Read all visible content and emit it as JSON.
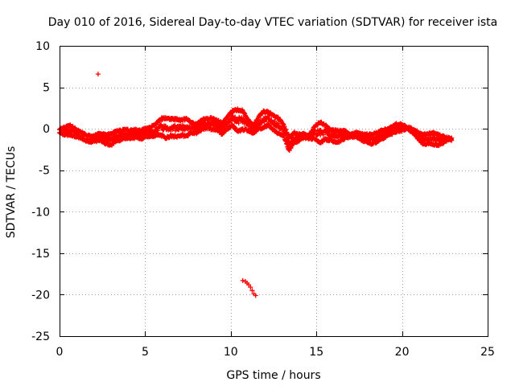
{
  "chart_data": {
    "type": "scatter",
    "title": "Day 010 of 2016, Sidereal Day-to-day VTEC variation (SDTVAR) for receiver ista",
    "xlabel": "GPS time / hours",
    "ylabel": "SDTVAR / TECUs",
    "xlim": [
      0,
      25
    ],
    "ylim": [
      -25,
      10
    ],
    "xticks": [
      0,
      5,
      10,
      15,
      20,
      25
    ],
    "yticks": [
      -25,
      -20,
      -15,
      -10,
      -5,
      0,
      5,
      10
    ],
    "grid": true,
    "marker": "plus",
    "color": "#ff0000",
    "series": [
      {
        "name": "SDTVAR",
        "band": [
          [
            0.0,
            -0.6,
            0.0
          ],
          [
            0.3,
            -0.8,
            0.3
          ],
          [
            0.6,
            -0.9,
            0.5
          ],
          [
            0.9,
            -1.0,
            0.2
          ],
          [
            1.2,
            -1.2,
            -0.3
          ],
          [
            1.5,
            -1.5,
            -0.6
          ],
          [
            1.8,
            -1.7,
            -0.8
          ],
          [
            2.1,
            -1.6,
            -0.6
          ],
          [
            2.4,
            -1.5,
            -0.5
          ],
          [
            2.7,
            -1.9,
            -0.6
          ],
          [
            3.0,
            -2.1,
            -0.5
          ],
          [
            3.3,
            -1.6,
            -0.2
          ],
          [
            3.6,
            -1.4,
            -0.1
          ],
          [
            3.9,
            -1.2,
            0.0
          ],
          [
            4.2,
            -1.3,
            -0.1
          ],
          [
            4.5,
            -1.1,
            0.0
          ],
          [
            4.8,
            -1.3,
            -0.1
          ],
          [
            5.0,
            -1.0,
            0.1
          ],
          [
            5.3,
            -1.1,
            0.3
          ],
          [
            5.6,
            -0.9,
            0.6
          ],
          [
            5.9,
            -0.9,
            1.3
          ],
          [
            6.2,
            -1.2,
            1.4
          ],
          [
            6.5,
            -1.0,
            1.3
          ],
          [
            6.8,
            -1.1,
            1.3
          ],
          [
            7.1,
            -0.9,
            1.2
          ],
          [
            7.4,
            -1.0,
            1.3
          ],
          [
            7.7,
            -0.6,
            0.9
          ],
          [
            8.0,
            -0.6,
            0.6
          ],
          [
            8.3,
            -0.2,
            1.2
          ],
          [
            8.6,
            0.0,
            1.3
          ],
          [
            8.9,
            -0.2,
            1.4
          ],
          [
            9.2,
            -0.2,
            1.1
          ],
          [
            9.5,
            -0.8,
            0.8
          ],
          [
            9.8,
            -0.1,
            1.5
          ],
          [
            10.1,
            0.3,
            2.3
          ],
          [
            10.4,
            -0.4,
            2.4
          ],
          [
            10.7,
            -0.2,
            2.3
          ],
          [
            11.0,
            -0.3,
            1.2
          ],
          [
            11.3,
            -0.6,
            0.5
          ],
          [
            11.6,
            -0.2,
            1.4
          ],
          [
            11.9,
            0.0,
            2.2
          ],
          [
            12.2,
            0.4,
            2.1
          ],
          [
            12.5,
            -0.3,
            1.7
          ],
          [
            12.8,
            -0.7,
            1.4
          ],
          [
            13.1,
            -1.0,
            0.5
          ],
          [
            13.4,
            -2.7,
            -0.9
          ],
          [
            13.7,
            -1.8,
            -0.4
          ],
          [
            14.0,
            -1.5,
            -0.6
          ],
          [
            14.3,
            -1.2,
            -0.5
          ],
          [
            14.6,
            -1.3,
            -0.7
          ],
          [
            14.9,
            -1.3,
            0.4
          ],
          [
            15.2,
            -1.8,
            0.9
          ],
          [
            15.5,
            -1.4,
            0.6
          ],
          [
            15.8,
            -1.5,
            0.0
          ],
          [
            16.1,
            -1.7,
            -0.1
          ],
          [
            16.4,
            -1.6,
            -0.1
          ],
          [
            16.7,
            -1.2,
            -0.2
          ],
          [
            17.0,
            -1.1,
            -0.6
          ],
          [
            17.3,
            -1.0,
            -0.4
          ],
          [
            17.6,
            -1.5,
            -0.4
          ],
          [
            17.9,
            -1.6,
            -0.6
          ],
          [
            18.2,
            -1.9,
            -0.6
          ],
          [
            18.5,
            -1.7,
            -0.4
          ],
          [
            18.8,
            -1.4,
            -0.1
          ],
          [
            19.1,
            -1.0,
            0.1
          ],
          [
            19.4,
            -0.7,
            0.3
          ],
          [
            19.7,
            -0.4,
            0.7
          ],
          [
            20.0,
            -0.3,
            0.6
          ],
          [
            20.3,
            -0.1,
            0.3
          ],
          [
            20.6,
            -0.5,
            0.1
          ],
          [
            20.9,
            -1.2,
            -0.2
          ],
          [
            21.2,
            -2.0,
            -0.6
          ],
          [
            21.5,
            -1.9,
            -0.5
          ],
          [
            21.8,
            -2.0,
            -0.4
          ],
          [
            22.1,
            -2.1,
            -0.5
          ],
          [
            22.4,
            -1.8,
            -0.8
          ],
          [
            22.7,
            -1.4,
            -1.0
          ],
          [
            22.9,
            -1.4,
            -1.1
          ]
        ],
        "outliers": [
          [
            2.25,
            6.6
          ],
          [
            10.7,
            -18.3
          ],
          [
            10.85,
            -18.4
          ],
          [
            10.95,
            -18.6
          ],
          [
            11.05,
            -18.8
          ],
          [
            11.15,
            -19.1
          ],
          [
            11.25,
            -19.5
          ],
          [
            11.35,
            -19.9
          ],
          [
            11.45,
            -20.1
          ]
        ]
      }
    ]
  }
}
